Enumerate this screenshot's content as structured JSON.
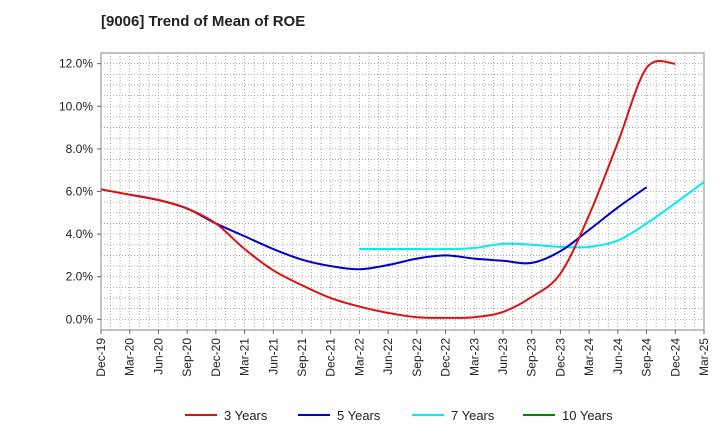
{
  "chart_data": {
    "type": "line",
    "title": "[9006]  Trend of Mean of ROE",
    "xlabel": "",
    "ylabel": "",
    "x_ticks": [
      "Dec-19",
      "Mar-20",
      "Jun-20",
      "Sep-20",
      "Dec-20",
      "Mar-21",
      "Jun-21",
      "Sep-21",
      "Dec-21",
      "Mar-22",
      "Jun-22",
      "Sep-22",
      "Dec-22",
      "Mar-23",
      "Jun-23",
      "Sep-23",
      "Dec-23",
      "Mar-24",
      "Jun-24",
      "Sep-24",
      "Dec-24",
      "Mar-25"
    ],
    "y_ticks": [
      0,
      2,
      4,
      6,
      8,
      10,
      12
    ],
    "y_tick_labels": [
      "0.0%",
      "2.0%",
      "4.0%",
      "6.0%",
      "8.0%",
      "10.0%",
      "12.0%"
    ],
    "ylim": [
      -0.5,
      12.5
    ],
    "grid": true,
    "legend_position": "bottom",
    "series": [
      {
        "name": "3 Years",
        "color": "#dd1111",
        "start_index": 0,
        "values": [
          6.1,
          5.85,
          5.6,
          5.2,
          4.5,
          3.3,
          2.3,
          1.6,
          1.0,
          0.6,
          0.3,
          0.1,
          0.07,
          0.1,
          0.35,
          1.05,
          2.15,
          4.9,
          8.3,
          11.8,
          12.0
        ]
      },
      {
        "name": "5 Years",
        "color": "#0000cc",
        "start_index": 1,
        "values": [
          5.85,
          5.6,
          5.2,
          4.5,
          3.9,
          3.3,
          2.8,
          2.5,
          2.35,
          2.55,
          2.85,
          3.0,
          2.85,
          2.75,
          2.65,
          3.2,
          4.2,
          5.25,
          6.2
        ]
      },
      {
        "name": "7 Years",
        "color": "#00eeee",
        "start_index": 9,
        "values": [
          3.3,
          3.3,
          3.3,
          3.3,
          3.35,
          3.55,
          3.5,
          3.4,
          3.4,
          3.7,
          4.5,
          5.45,
          6.45
        ]
      },
      {
        "name": "10 Years",
        "color": "#008800",
        "start_index": 0,
        "values": []
      }
    ]
  }
}
